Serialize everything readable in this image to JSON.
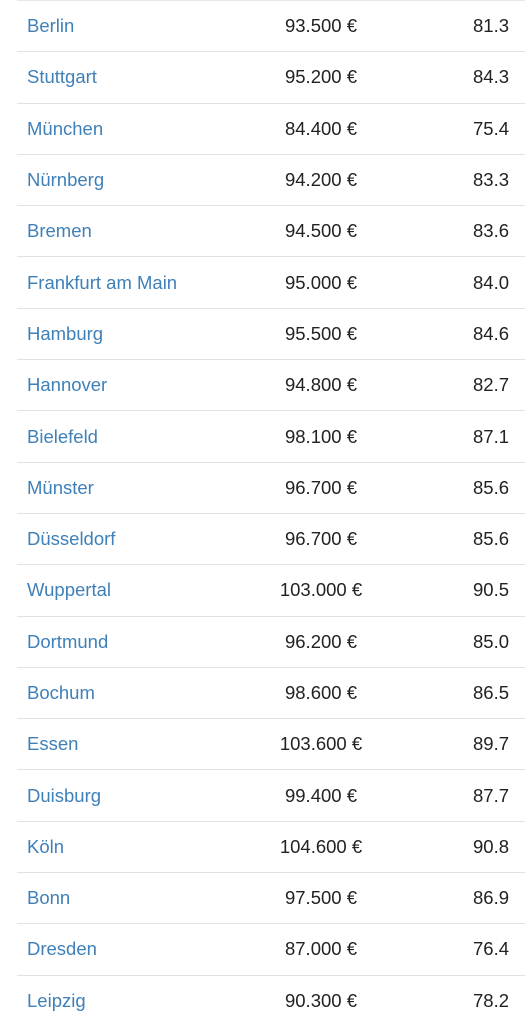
{
  "table": {
    "rows": [
      {
        "city": "Berlin",
        "price": "93.500 €",
        "price2": "81.3"
      },
      {
        "city": "Stuttgart",
        "price": "95.200 €",
        "price2": "84.3"
      },
      {
        "city": "München",
        "price": "84.400 €",
        "price2": "75.4"
      },
      {
        "city": "Nürnberg",
        "price": "94.200 €",
        "price2": "83.3"
      },
      {
        "city": "Bremen",
        "price": "94.500 €",
        "price2": "83.6"
      },
      {
        "city": "Frankfurt am Main",
        "price": "95.000 €",
        "price2": "84.0"
      },
      {
        "city": "Hamburg",
        "price": "95.500 €",
        "price2": "84.6"
      },
      {
        "city": "Hannover",
        "price": "94.800 €",
        "price2": "82.7"
      },
      {
        "city": "Bielefeld",
        "price": "98.100 €",
        "price2": "87.1"
      },
      {
        "city": "Münster",
        "price": "96.700 €",
        "price2": "85.6"
      },
      {
        "city": "Düsseldorf",
        "price": "96.700 €",
        "price2": "85.6"
      },
      {
        "city": "Wuppertal",
        "price": "103.000 €",
        "price2": "90.5"
      },
      {
        "city": "Dortmund",
        "price": "96.200 €",
        "price2": "85.0"
      },
      {
        "city": "Bochum",
        "price": "98.600 €",
        "price2": "86.5"
      },
      {
        "city": "Essen",
        "price": "103.600 €",
        "price2": "89.7"
      },
      {
        "city": "Duisburg",
        "price": "99.400 €",
        "price2": "87.7"
      },
      {
        "city": "Köln",
        "price": "104.600 €",
        "price2": "90.8"
      },
      {
        "city": "Bonn",
        "price": "97.500 €",
        "price2": "86.9"
      },
      {
        "city": "Dresden",
        "price": "87.000 €",
        "price2": "76.4"
      },
      {
        "city": "Leipzig",
        "price": "90.300 €",
        "price2": "78.2"
      }
    ]
  }
}
